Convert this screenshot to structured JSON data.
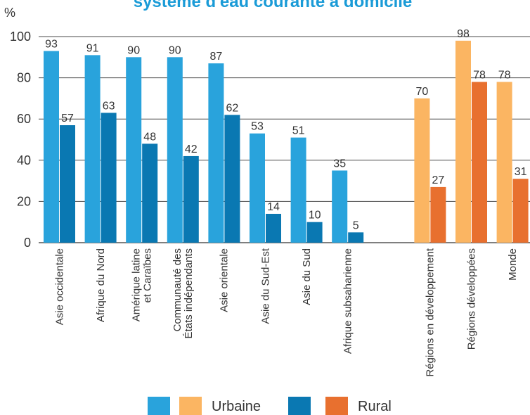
{
  "chart_data": {
    "type": "bar",
    "title": "système d'eau courante à domicile",
    "unit_label": "%",
    "ylim": [
      0,
      100
    ],
    "yticks": [
      0,
      20,
      40,
      60,
      80,
      100
    ],
    "grid": true,
    "categories": [
      [
        "Asie occidentale"
      ],
      [
        "Afrique du Nord"
      ],
      [
        "Amérique latine",
        "et Caraïbes"
      ],
      [
        "Communauté des",
        "États indépendants"
      ],
      [
        "Asie orientale"
      ],
      [
        "Asie du Sud-Est"
      ],
      [
        "Asie du Sud"
      ],
      [
        "Afrique subsaharienne"
      ],
      [],
      [
        "Régions en développement"
      ],
      [
        "Régions développées"
      ],
      [
        "Monde"
      ]
    ],
    "series": [
      {
        "name": "Urbaine",
        "values": [
          93,
          91,
          90,
          90,
          87,
          53,
          51,
          35,
          null,
          null,
          null,
          null
        ]
      },
      {
        "name": "Rural",
        "values": [
          57,
          63,
          48,
          42,
          62,
          14,
          10,
          5,
          null,
          null,
          null,
          null
        ]
      },
      {
        "name": "Urbaine",
        "values": [
          null,
          null,
          null,
          null,
          null,
          null,
          null,
          null,
          null,
          70,
          98,
          78
        ]
      },
      {
        "name": "Rural",
        "values": [
          null,
          null,
          null,
          null,
          null,
          null,
          null,
          null,
          null,
          27,
          78,
          31
        ]
      }
    ],
    "colors": {
      "urban_regions": "#29a3dc",
      "rural_regions": "#0a78b2",
      "urban_aggregate": "#fbb562",
      "rural_aggregate": "#e8702f",
      "title": "#1a9bd7"
    },
    "legend": {
      "position": "bottom",
      "items": [
        {
          "color": "#29a3dc",
          "label": ""
        },
        {
          "color": "#fbb562",
          "label": "Urbaine"
        },
        {
          "color": "#0a78b2",
          "label": ""
        },
        {
          "color": "#e8702f",
          "label": "Rural"
        }
      ]
    }
  }
}
